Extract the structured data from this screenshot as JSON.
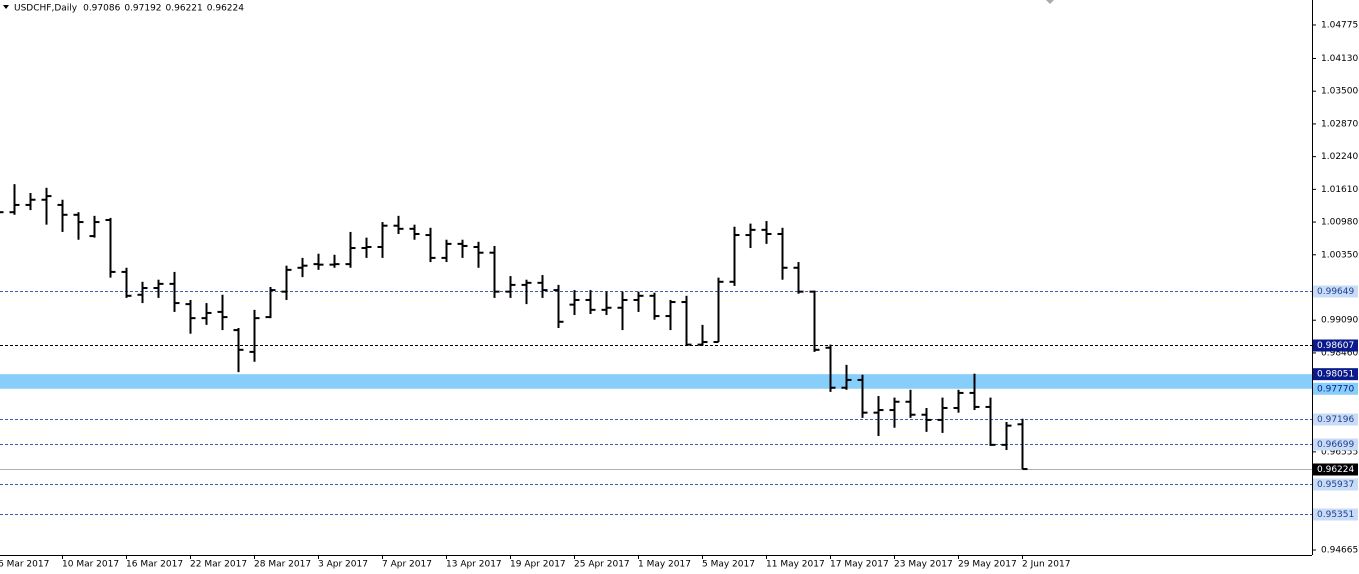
{
  "chart_data": {
    "type": "ohlc",
    "title": "USDCHF,Daily",
    "quote": [
      0.97086,
      0.97192,
      0.96221,
      0.96224
    ],
    "bar_color": "#000000",
    "categories": [
      "6 Mar 2017",
      null,
      null,
      null,
      "10 Mar 2017",
      null,
      null,
      null,
      "16 Mar 2017",
      null,
      null,
      null,
      "22 Mar 2017",
      null,
      null,
      null,
      "28 Mar 2017",
      null,
      null,
      null,
      "3 Apr 2017",
      null,
      null,
      null,
      "7 Apr 2017",
      null,
      null,
      null,
      "13 Apr 2017",
      null,
      null,
      null,
      "19 Apr 2017",
      null,
      null,
      null,
      "25 Apr 2017",
      null,
      null,
      null,
      "1 May 2017",
      null,
      null,
      null,
      "5 May 2017",
      null,
      null,
      null,
      "11 May 2017",
      null,
      null,
      null,
      "17 May 2017",
      null,
      null,
      null,
      "23 May 2017",
      null,
      null,
      null,
      "29 May 2017",
      null,
      null,
      null,
      "2 Jun 2017"
    ],
    "open": [
      1.0117,
      1.0117,
      1.0131,
      1.0141,
      1.0131,
      1.0112,
      1.0071,
      1.0102,
      1.0002,
      0.9958,
      0.9971,
      0.9979,
      0.994,
      0.9913,
      0.9925,
      0.989,
      0.9848,
      0.9915,
      0.9964,
      1.001,
      1.0017,
      1.0016,
      1.0017,
      1.0048,
      1.005,
      1.0091,
      1.0085,
      1.0073,
      1.0029,
      1.0056,
      1.005,
      1.0039,
      0.9964,
      0.9977,
      0.9981,
      0.9967,
      0.9939,
      0.9948,
      0.9929,
      0.9933,
      0.9948,
      0.9956,
      0.9917,
      0.9944,
      0.9862,
      0.9867,
      0.9983,
      1.0073,
      1.0083,
      1.0075,
      1.001,
      0.9964,
      0.9856,
      0.9779,
      0.9794,
      0.9731,
      0.9736,
      0.9752,
      0.9727,
      0.9717,
      0.974,
      0.9769,
      0.9742,
      0.9669,
      0.97086
    ],
    "high": [
      1.0121,
      1.0171,
      1.0154,
      1.0164,
      1.0141,
      1.0117,
      1.011,
      1.0106,
      1.001,
      0.9983,
      0.9987,
      1.0002,
      0.9948,
      0.9942,
      0.9958,
      0.9894,
      0.9929,
      0.9973,
      1.0014,
      1.0029,
      1.0037,
      1.0035,
      1.0079,
      1.0068,
      1.0098,
      1.011,
      1.0093,
      1.0087,
      1.0064,
      1.0064,
      1.006,
      1.0052,
      0.9994,
      0.9987,
      0.9996,
      0.9977,
      0.9967,
      0.9967,
      0.9964,
      0.9964,
      0.9964,
      0.9962,
      0.9948,
      0.9956,
      0.99,
      0.9991,
      1.0089,
      1.0095,
      1.01,
      1.0087,
      1.0021,
      0.9966,
      0.9862,
      0.9823,
      0.9804,
      0.9763,
      0.976,
      0.9775,
      0.974,
      0.976,
      0.9775,
      0.9806,
      0.976,
      0.9713,
      0.97192
    ],
    "low": [
      1.0114,
      1.0112,
      1.0121,
      1.0093,
      1.0079,
      1.0064,
      1.0068,
      0.9991,
      0.9952,
      0.9942,
      0.9952,
      0.9925,
      0.9883,
      0.99,
      0.989,
      0.9809,
      0.9829,
      0.9913,
      0.9948,
      0.9992,
      1.0006,
      1.001,
      1.001,
      1.0029,
      1.0029,
      1.0075,
      1.0064,
      1.0021,
      1.0021,
      1.0029,
      1.001,
      0.9952,
      0.9952,
      0.994,
      0.9952,
      0.9894,
      0.9919,
      0.9921,
      0.9919,
      0.989,
      0.9925,
      0.991,
      0.989,
      0.986,
      0.986,
      0.9867,
      0.9975,
      1.0048,
      1.0056,
      0.9987,
      0.996,
      0.9848,
      0.9771,
      0.9775,
      0.9721,
      0.9686,
      0.9702,
      0.9721,
      0.9694,
      0.9692,
      0.9731,
      0.9736,
      0.9667,
      0.9659,
      0.96221
    ],
    "close": [
      1.0117,
      1.0131,
      1.0141,
      1.0148,
      1.0112,
      1.0098,
      1.0098,
      1.0002,
      0.9956,
      0.9971,
      0.9979,
      0.9942,
      0.9913,
      0.9923,
      0.9915,
      0.9852,
      0.9913,
      0.9967,
      1.0006,
      1.0014,
      1.0016,
      1.0017,
      1.0048,
      1.005,
      1.0091,
      1.0085,
      1.0075,
      1.0029,
      1.0056,
      1.0052,
      1.0039,
      0.9964,
      0.9977,
      0.9981,
      0.9967,
      0.9906,
      0.9948,
      0.9929,
      0.9933,
      0.9948,
      0.9956,
      0.9917,
      0.9944,
      0.9862,
      0.9867,
      0.9983,
      1.0073,
      1.0083,
      1.0075,
      1.001,
      0.9964,
      0.9852,
      0.9779,
      0.9794,
      0.9731,
      0.9736,
      0.9752,
      0.9727,
      0.9717,
      0.974,
      0.9769,
      0.9742,
      0.9669,
      0.9706,
      0.96224
    ],
    "ylim": [
      0.94569,
      1.05256
    ],
    "yticks": [
      1.04775,
      {
        "value": 1.0413,
        "label": "1.04130"
      },
      {
        "value": 1.035,
        "label": "1.03500"
      },
      {
        "value": 1.0287,
        "label": "1.02870"
      },
      {
        "value": 1.0224,
        "label": "1.02240"
      },
      {
        "value": 1.0161,
        "label": "1.01610"
      },
      {
        "value": 1.0098,
        "label": "1.00980"
      },
      {
        "value": 1.0035,
        "label": "1.00350"
      },
      {
        "value": 0.9909,
        "label": "0.99090"
      },
      {
        "value": 0.9846,
        "label": "0.98460"
      },
      0.96555,
      0.94665
    ],
    "levels": [
      {
        "value": 0.99649,
        "color": "#3a5fb0",
        "dashed": true,
        "label_bg": "#c9dcf7",
        "label_color": "#1f3f8f"
      },
      {
        "value": 0.98607,
        "color": "#000000",
        "dashed": true,
        "label_bg": "#0a1a8c",
        "label_color": "#ffffff"
      },
      {
        "value": 0.97196,
        "color": "#3a5fb0",
        "dashed": true,
        "label_bg": "#c9dcf7",
        "label_color": "#1f3f8f"
      },
      {
        "value": 0.96699,
        "color": "#3a5fb0",
        "dashed": true,
        "label_bg": "#c9dcf7",
        "label_color": "#1f3f8f"
      },
      {
        "value": 0.96224,
        "color": "#b0b0b0",
        "dashed": false,
        "label_bg": "#000000",
        "label_color": "#ffffff"
      },
      {
        "value": 0.95937,
        "color": "#3a5fb0",
        "dashed": true,
        "label_bg": "#c9dcf7",
        "label_color": "#1f3f8f"
      },
      {
        "value": 0.95351,
        "color": "#3a5fb0",
        "dashed": true,
        "label_bg": "#c9dcf7",
        "label_color": "#1f3f8f"
      }
    ],
    "zone": {
      "color": "#87cefa",
      "levels": [
        {
          "value": 0.98051,
          "label_bg": "#0a1a8c",
          "label_color": "#ffffff"
        },
        {
          "value": 0.9777,
          "label": "0.97770",
          "label_bg": "#87cefa",
          "label_color": "#0a1a8c"
        }
      ]
    }
  }
}
